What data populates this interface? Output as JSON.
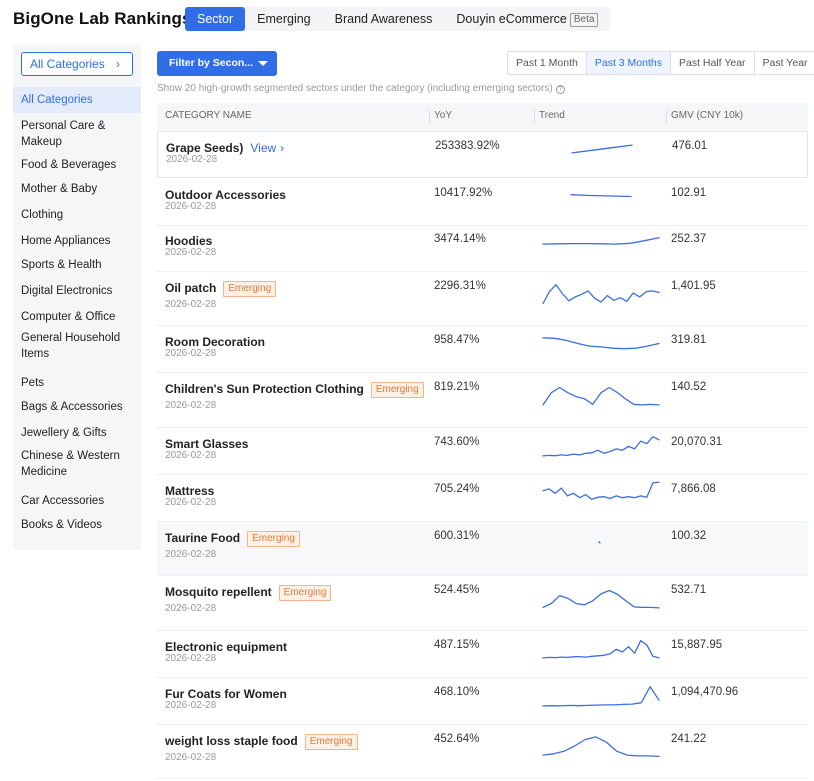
{
  "app": {
    "title": "BigOne Lab Rankings"
  },
  "tabs": [
    {
      "label": "Sector",
      "active": true
    },
    {
      "label": "Emerging"
    },
    {
      "label": "Brand Awareness"
    },
    {
      "label": "Douyin eCommerce",
      "badge": "Beta"
    }
  ],
  "sidebar": {
    "selector_label": "All Categories",
    "items": [
      "All Categories",
      "Personal Care & Makeup",
      "Food & Beverages",
      "Mother & Baby",
      "Clothing",
      "Home Appliances",
      "Sports & Health",
      "Digital Electronics",
      "Computer & Office",
      "General Household Items",
      "Pets",
      "Bags & Accessories",
      "Jewellery & Gifts",
      "Chinese & Western Medicine",
      "Car Accessories",
      "Books & Videos"
    ]
  },
  "toolbar": {
    "filter_label": "Filter by Secon...",
    "periods": [
      "Past 1 Month",
      "Past 3 Months",
      "Past Half Year",
      "Past Year"
    ],
    "active_period": "Past 3 Months",
    "subtitle": "Show 20 high-growth segmented sectors under the category (including emerging sectors)"
  },
  "table": {
    "headers": {
      "category": "CATEGORY NAME",
      "yoy": "YoY",
      "trend": "Trend",
      "gmv": "GMV (CNY 10k)"
    },
    "view_label": "View",
    "emerging_label": "Emerging",
    "rows": [
      {
        "name": "Grape Seeds)",
        "date": "2026-02-28",
        "yoy": "253383.92%",
        "gmv": "476.01",
        "view": true,
        "emerging": false,
        "trend": [
          0.35,
          0.45,
          0.55,
          0.65
        ]
      },
      {
        "name": "Outdoor Accessories",
        "date": "2026-02-28",
        "yoy": "10417.92%",
        "gmv": "102.91",
        "emerging": false,
        "trend": [
          0.55,
          0.52,
          0.5,
          0.48
        ]
      },
      {
        "name": "Hoodies",
        "date": "2026-02-28",
        "yoy": "3474.14%",
        "gmv": "252.37",
        "emerging": false,
        "trend": [
          0.42,
          0.43,
          0.44,
          0.44,
          0.43,
          0.42,
          0.45,
          0.55,
          0.66
        ]
      },
      {
        "name": "Oil patch",
        "date": "2026-02-28",
        "yoy": "2296.31%",
        "gmv": "1,401.95",
        "emerging": true,
        "trend": [
          0.1,
          0.55,
          0.82,
          0.48,
          0.2,
          0.35,
          0.45,
          0.58,
          0.3,
          0.15,
          0.4,
          0.22,
          0.32,
          0.18,
          0.5,
          0.35,
          0.55,
          0.58,
          0.52
        ]
      },
      {
        "name": "Room Decoration",
        "date": "2026-02-28",
        "yoy": "958.47%",
        "gmv": "319.81",
        "emerging": false,
        "trend": [
          0.7,
          0.68,
          0.6,
          0.48,
          0.38,
          0.35,
          0.3,
          0.28,
          0.3,
          0.38,
          0.48
        ]
      },
      {
        "name": "Children's Sun Protection Clothing",
        "date": "2026-02-28",
        "yoy": "819.21%",
        "gmv": "140.52",
        "emerging": true,
        "trend": [
          0.08,
          0.55,
          0.75,
          0.55,
          0.4,
          0.32,
          0.1,
          0.55,
          0.75,
          0.55,
          0.3,
          0.1,
          0.08,
          0.1,
          0.08
        ]
      },
      {
        "name": "Smart Glasses",
        "date": "2026-02-28",
        "yoy": "743.60%",
        "gmv": "20,070.31",
        "emerging": false,
        "trend": [
          0.08,
          0.1,
          0.09,
          0.12,
          0.1,
          0.15,
          0.12,
          0.18,
          0.2,
          0.3,
          0.18,
          0.25,
          0.35,
          0.3,
          0.45,
          0.35,
          0.65,
          0.55,
          0.82,
          0.7
        ]
      },
      {
        "name": "Mattress",
        "date": "2026-02-28",
        "yoy": "705.24%",
        "gmv": "7,866.08",
        "emerging": false,
        "trend": [
          0.55,
          0.62,
          0.45,
          0.65,
          0.35,
          0.45,
          0.28,
          0.4,
          0.22,
          0.3,
          0.32,
          0.25,
          0.35,
          0.28,
          0.32,
          0.28,
          0.35,
          0.3,
          0.85,
          0.88
        ]
      },
      {
        "name": "Taurine Food",
        "date": "2026-02-28",
        "yoy": "600.31%",
        "gmv": "100.32",
        "emerging": true,
        "trend": [
          0.55,
          0.5
        ]
      },
      {
        "name": "Mosquito repellent",
        "date": "2026-02-28",
        "yoy": "524.45%",
        "gmv": "532.71",
        "emerging": true,
        "trend": [
          0.1,
          0.25,
          0.55,
          0.45,
          0.25,
          0.2,
          0.35,
          0.62,
          0.75,
          0.6,
          0.35,
          0.12,
          0.1,
          0.1,
          0.08
        ]
      },
      {
        "name": "Electronic equipment",
        "date": "2026-02-28",
        "yoy": "487.15%",
        "gmv": "15,887.95",
        "emerging": false,
        "trend": [
          0.12,
          0.14,
          0.13,
          0.15,
          0.14,
          0.16,
          0.17,
          0.15,
          0.18,
          0.2,
          0.22,
          0.28,
          0.45,
          0.35,
          0.55,
          0.3,
          0.78,
          0.62,
          0.18,
          0.12
        ]
      },
      {
        "name": "Fur Coats for Women",
        "date": "2026-02-28",
        "yoy": "468.10%",
        "gmv": "1,094,470.96",
        "emerging": false,
        "trend": [
          0.08,
          0.09,
          0.08,
          0.1,
          0.09,
          0.1,
          0.11,
          0.12,
          0.12,
          0.14,
          0.15,
          0.2,
          0.82,
          0.3
        ]
      },
      {
        "name": "weight loss staple food",
        "date": "2026-02-28",
        "yoy": "452.64%",
        "gmv": "241.22",
        "emerging": true,
        "trend": [
          0.15,
          0.2,
          0.3,
          0.5,
          0.75,
          0.85,
          0.65,
          0.3,
          0.15,
          0.12,
          0.12,
          0.1
        ]
      }
    ]
  }
}
